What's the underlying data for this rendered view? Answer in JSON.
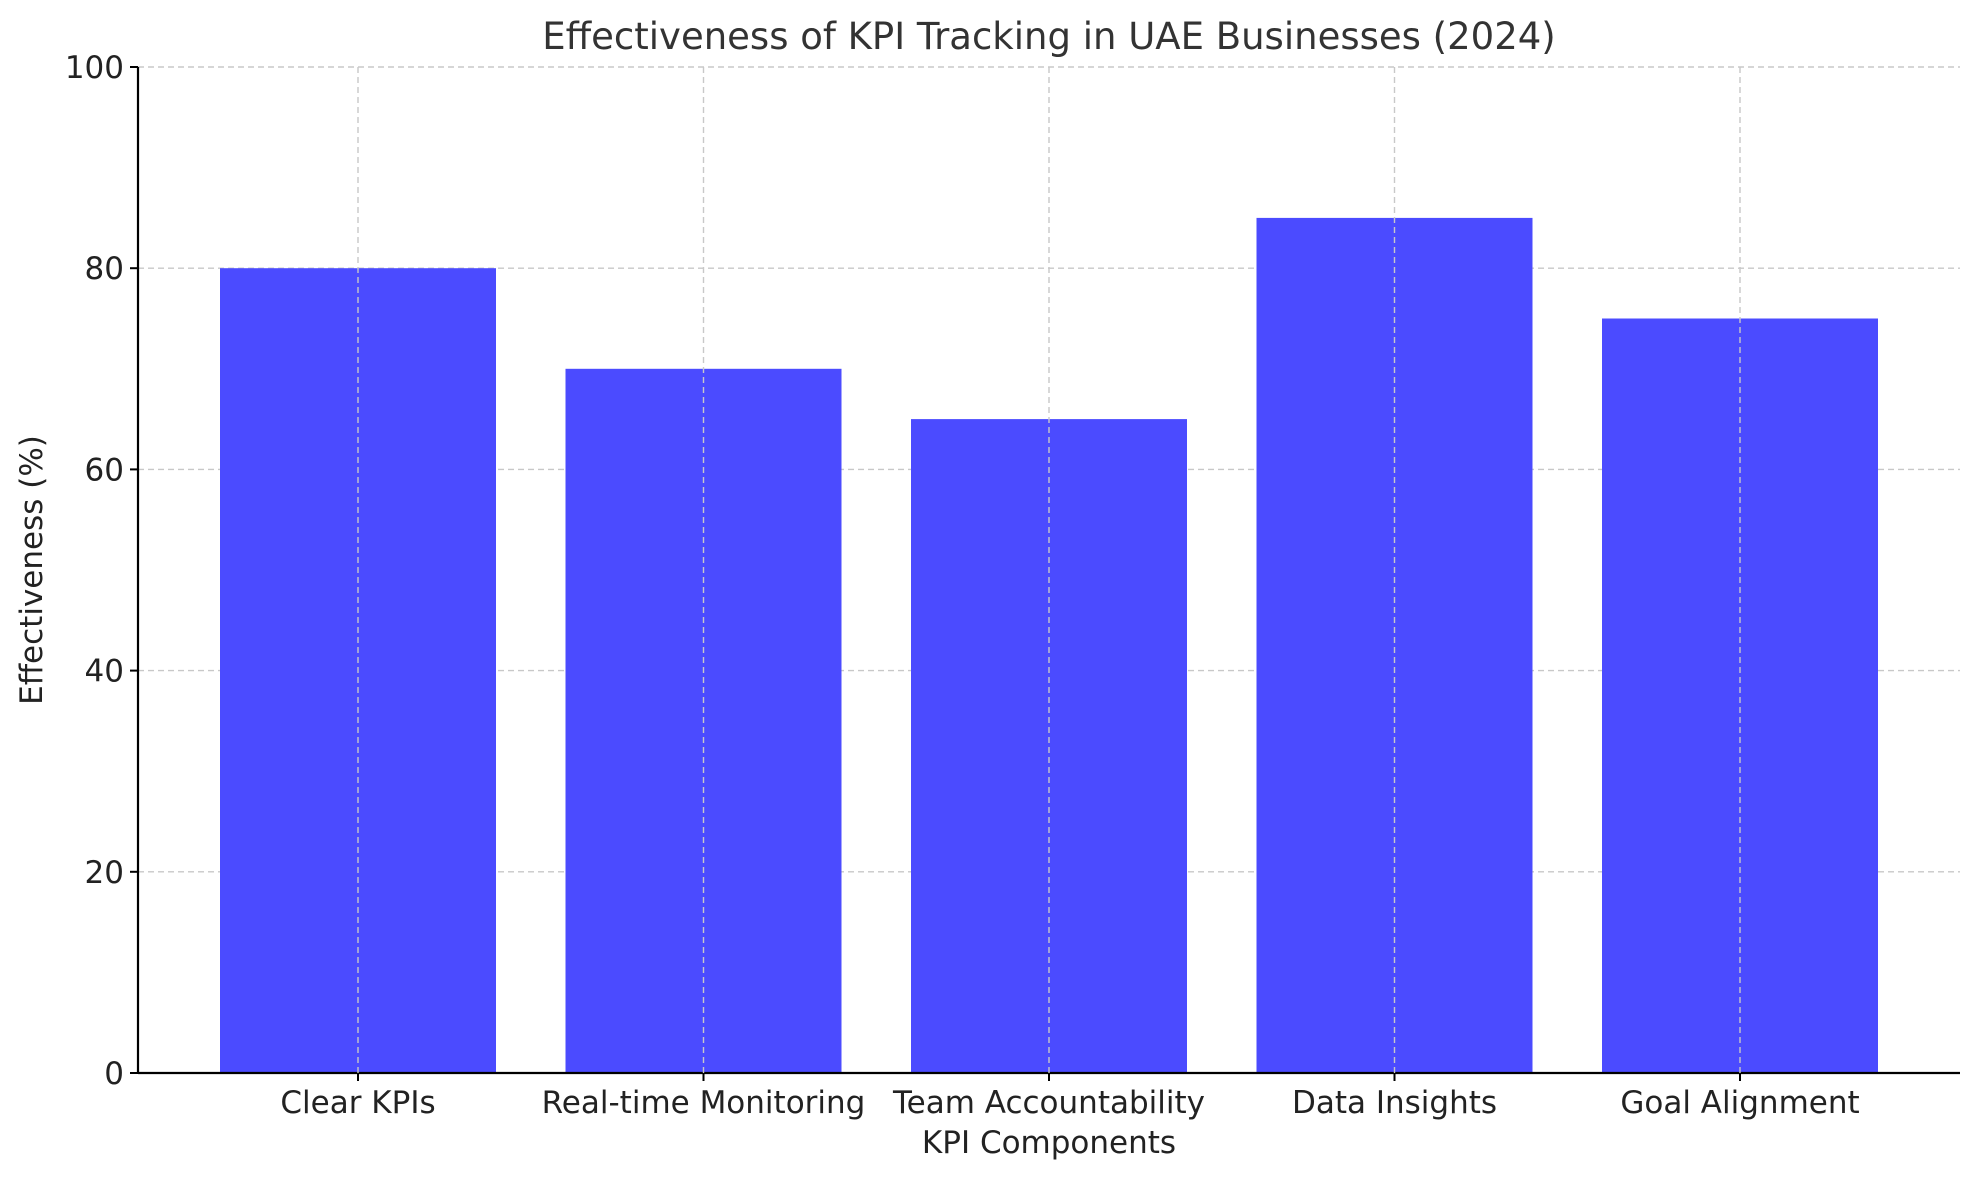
{
  "chart_data": {
    "type": "bar",
    "title": "Effectiveness of KPI Tracking in UAE Businesses (2024)",
    "xlabel": "KPI Components",
    "ylabel": "Effectiveness (%)",
    "categories": [
      "Clear KPIs",
      "Real-time Monitoring",
      "Team Accountability",
      "Data Insights",
      "Goal Alignment"
    ],
    "values": [
      80,
      70,
      65,
      85,
      75
    ],
    "ylim": [
      0,
      100
    ],
    "yticks": [
      0,
      20,
      40,
      60,
      80,
      100
    ],
    "grid": true,
    "bar_color": "#4b4bff"
  }
}
